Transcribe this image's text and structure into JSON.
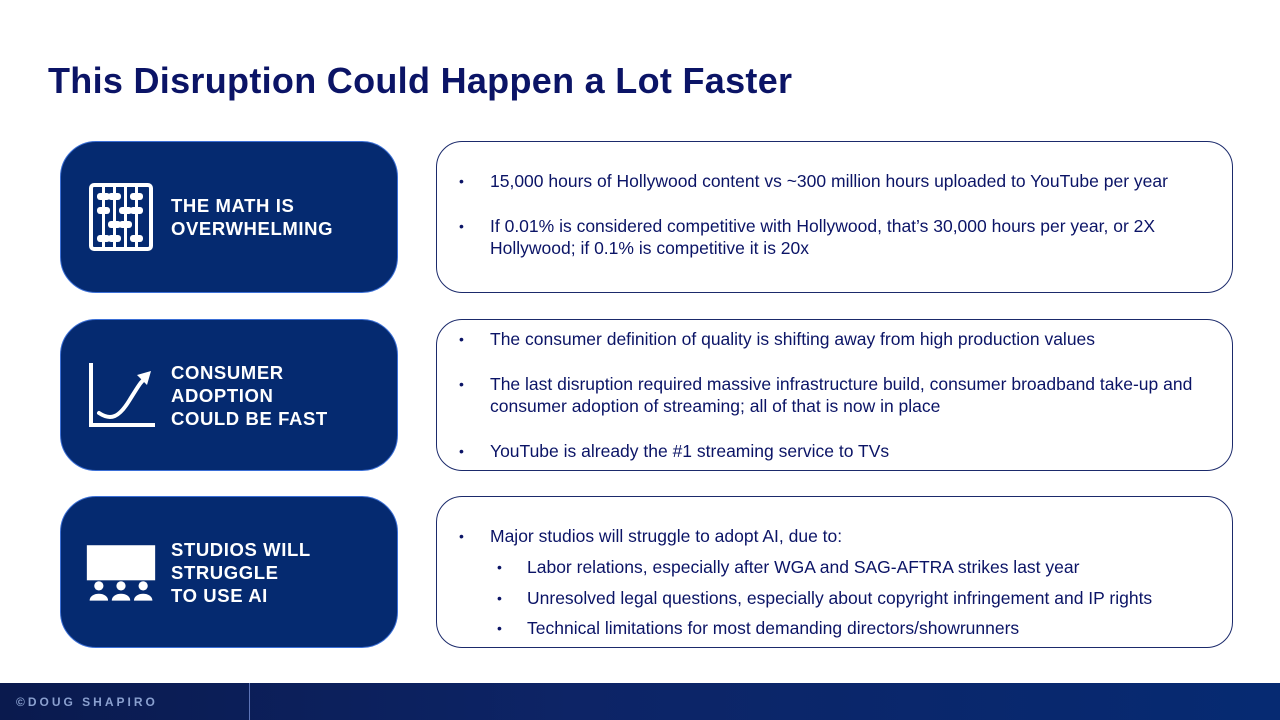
{
  "title": "This Disruption Could Happen a Lot Faster",
  "rows": [
    {
      "icon": "abacus-icon",
      "label": "THE MATH IS\nOVERWHELMING",
      "bullets": [
        "15,000 hours of Hollywood content vs ~300 million hours uploaded to YouTube per year",
        "If 0.01% is considered competitive with Hollywood, that’s 30,000 hours per year, or 2X Hollywood; if 0.1% is competitive it is 20x"
      ]
    },
    {
      "icon": "growth-chart-icon",
      "label": "CONSUMER\nADOPTION\nCOULD BE FAST",
      "bullets": [
        "The consumer definition of quality is shifting away from high production values",
        "The last disruption required massive infrastructure build, consumer broadband take-up and consumer adoption of streaming; all of that is now in place",
        "YouTube is already the #1 streaming service to TVs"
      ]
    },
    {
      "icon": "movie-theater-icon",
      "label": "STUDIOS WILL\nSTRUGGLE\nTO USE AI",
      "bullets": [
        "Major studios will struggle to adopt AI, due to:"
      ],
      "sub_bullets": [
        "Labor relations, especially after WGA and SAG-AFTRA strikes last year",
        "Unresolved legal questions, especially about copyright infringement and IP rights",
        "Technical limitations for most demanding directors/showrunners"
      ]
    }
  ],
  "footer": {
    "brand": "©DOUG SHAPIRO"
  },
  "colors": {
    "title": "#0b1466",
    "label_bg": "#052a70",
    "footer_bg": "#0d2466"
  }
}
